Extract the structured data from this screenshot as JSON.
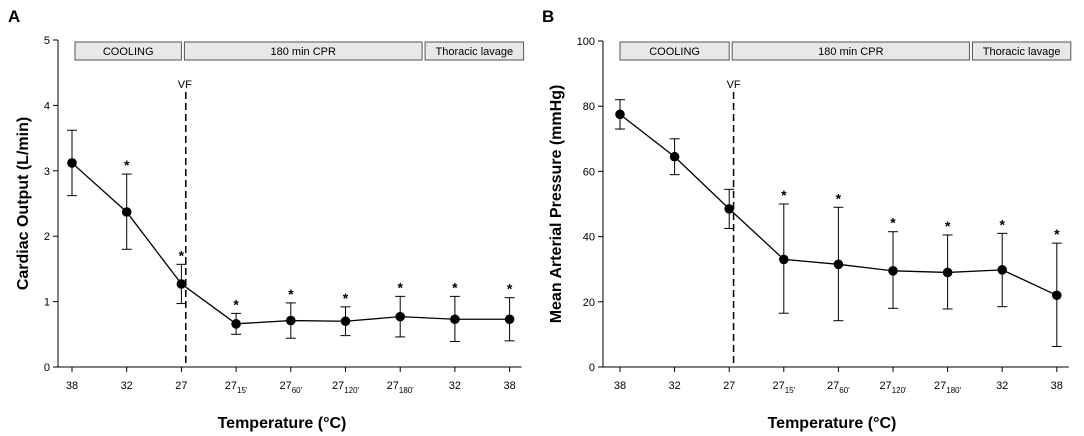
{
  "chart_data": [
    {
      "type": "line",
      "panel_label": "A",
      "xlabel": "Temperature (°C)",
      "ylabel": "Cardiac Output (L/min)",
      "ylim": [
        0,
        5
      ],
      "yticks": [
        "0",
        "1",
        "2",
        "3",
        "4",
        "5"
      ],
      "categories": [
        {
          "base": "38",
          "sub": ""
        },
        {
          "base": "32",
          "sub": ""
        },
        {
          "base": "27",
          "sub": ""
        },
        {
          "base": "27",
          "sub": "15'"
        },
        {
          "base": "27",
          "sub": "60'"
        },
        {
          "base": "27",
          "sub": "120'"
        },
        {
          "base": "27",
          "sub": "180'"
        },
        {
          "base": "32",
          "sub": ""
        },
        {
          "base": "38",
          "sub": ""
        }
      ],
      "values": [
        3.12,
        2.37,
        1.27,
        0.66,
        0.71,
        0.7,
        0.77,
        0.73,
        0.73
      ],
      "error_upper": [
        3.62,
        2.95,
        1.57,
        0.82,
        0.98,
        0.92,
        1.08,
        1.08,
        1.06
      ],
      "error_lower": [
        2.62,
        1.8,
        0.97,
        0.5,
        0.44,
        0.48,
        0.46,
        0.39,
        0.4
      ],
      "significant": [
        false,
        true,
        true,
        true,
        true,
        true,
        true,
        true,
        true
      ],
      "star": "*",
      "phases": [
        {
          "label": "COOLING",
          "from": 0,
          "to": 2
        },
        {
          "label": "180 min CPR",
          "from": 2,
          "to": 6.4
        },
        {
          "label": "Thoracic lavage",
          "from": 6.4,
          "to": 8
        }
      ],
      "vf_label": "VF",
      "vf_at": 2.08
    },
    {
      "type": "line",
      "panel_label": "B",
      "xlabel": "Temperature (°C)",
      "ylabel": "Mean Arterial Pressure (mmHg)",
      "ylim": [
        0,
        100
      ],
      "yticks": [
        "0",
        "20",
        "40",
        "60",
        "80",
        "100"
      ],
      "categories": [
        {
          "base": "38",
          "sub": ""
        },
        {
          "base": "32",
          "sub": ""
        },
        {
          "base": "27",
          "sub": ""
        },
        {
          "base": "27",
          "sub": "15'"
        },
        {
          "base": "27",
          "sub": "60'"
        },
        {
          "base": "27",
          "sub": "120'"
        },
        {
          "base": "27",
          "sub": "180'"
        },
        {
          "base": "32",
          "sub": ""
        },
        {
          "base": "38",
          "sub": ""
        }
      ],
      "values": [
        77.5,
        64.5,
        48.5,
        33,
        31.5,
        29.5,
        29,
        29.8,
        22
      ],
      "error_upper": [
        82,
        70,
        54.5,
        50,
        49,
        41.5,
        40.5,
        41,
        38
      ],
      "error_lower": [
        73,
        59,
        42.5,
        16.5,
        14.2,
        18,
        17.8,
        18.5,
        6.3
      ],
      "significant": [
        false,
        false,
        false,
        true,
        true,
        true,
        true,
        true,
        true
      ],
      "star": "*",
      "phases": [
        {
          "label": "COOLING",
          "from": 0,
          "to": 2
        },
        {
          "label": "180 min CPR",
          "from": 2,
          "to": 6.4
        },
        {
          "label": "Thoracic lavage",
          "from": 6.4,
          "to": 8
        }
      ],
      "vf_label": "VF",
      "vf_at": 2.08
    }
  ]
}
